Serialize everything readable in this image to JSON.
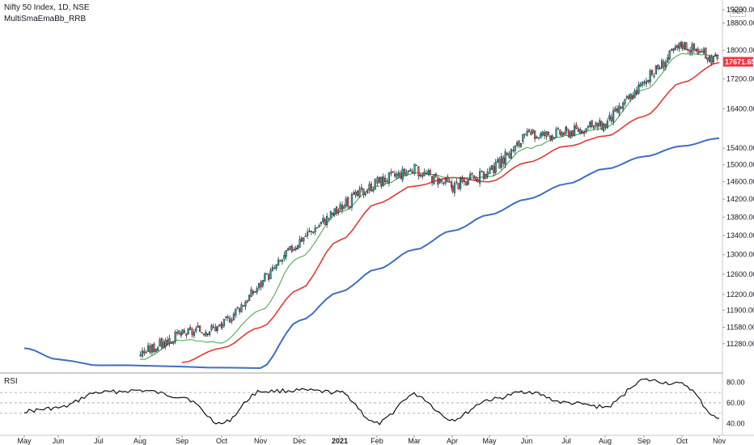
{
  "legend": {
    "symbol": "Nifty 50 Index, 1D, NSE",
    "indicator": "MultiSmaEmaBb_RRB"
  },
  "currency_badge": "INR",
  "last_price_label": "17671.65",
  "rsi_label": "RSI",
  "colors": {
    "up_candle": "#26a69a",
    "down_candle": "#ef5350",
    "sma_short": "#43a047",
    "ema_mid": "#e53935",
    "sma_long": "#3d6fc4",
    "rsi_line": "#000000",
    "last_price_bg": "#f23645"
  },
  "chart_data": [
    {
      "type": "line",
      "title": "",
      "price_axis": {
        "scale": "log",
        "ticks": [
          "19200.00",
          "18800.00",
          "18000.00",
          "17200.00",
          "16400.00",
          "15400.00",
          "15000.00",
          "14600.00",
          "14200.00",
          "13800.00",
          "13400.00",
          "13000.00",
          "12600.00",
          "12200.00",
          "11900.00",
          "11580.00",
          "11280.00"
        ],
        "ylim": [
          10780,
          19300
        ]
      },
      "time_axis": {
        "ticks": [
          "May",
          "Jun",
          "Jul",
          "Aug",
          "Sep",
          "Oct",
          "Nov",
          "Dec",
          "2021",
          "Feb",
          "Mar",
          "Apr",
          "May",
          "Jun",
          "Jul",
          "Aug",
          "Sep",
          "Oct",
          "Nov"
        ]
      },
      "last_price": 17671.65,
      "series": [
        {
          "kind": "candles",
          "x": [
            "Aug",
            "Sep",
            "Oct",
            "Nov",
            "Dec",
            "2021",
            "Feb",
            "Mar",
            "Apr",
            "May",
            "Jun",
            "Jul",
            "Aug",
            "Sep",
            "Oct",
            "Nov"
          ],
          "values": [
            11100,
            11450,
            11600,
            12400,
            13300,
            14000,
            14600,
            14900,
            14500,
            14800,
            15700,
            15800,
            16000,
            17100,
            18200,
            17671.65
          ]
        },
        {
          "kind": "sma_short",
          "x": [
            "Aug",
            "Sep",
            "Oct",
            "Nov",
            "Dec",
            "2021",
            "Feb",
            "Mar",
            "Apr",
            "May",
            "Jun",
            "Jul",
            "Aug",
            "Sep",
            "Oct",
            "Nov"
          ],
          "values": [
            11000,
            11350,
            11300,
            11900,
            12950,
            13900,
            14500,
            14800,
            14700,
            14700,
            15400,
            15700,
            15900,
            16900,
            17900,
            17850
          ]
        },
        {
          "kind": "ema_mid",
          "x": [
            "Sep",
            "Oct",
            "Nov",
            "Dec",
            "2021",
            "Feb",
            "Mar",
            "Apr",
            "May",
            "Jun",
            "Jul",
            "Aug",
            "Sep",
            "Oct",
            "Nov"
          ],
          "values": [
            10950,
            11200,
            11580,
            12300,
            13300,
            14100,
            14500,
            14700,
            14600,
            15050,
            15450,
            15700,
            16200,
            17100,
            17650
          ]
        },
        {
          "kind": "sma_long",
          "x": [
            "May",
            "Jun",
            "Jul",
            "Nov",
            "Dec",
            "2021",
            "Feb",
            "Mar",
            "Apr",
            "May",
            "Jun",
            "Jul",
            "Aug",
            "Sep",
            "Oct",
            "Nov"
          ],
          "values": [
            11200,
            11000,
            10900,
            10850,
            11700,
            12250,
            12700,
            13100,
            13500,
            13850,
            14200,
            14550,
            14900,
            15200,
            15450,
            15650
          ]
        }
      ]
    },
    {
      "type": "line",
      "title": "RSI",
      "ticks": [
        "80.00",
        "60.00",
        "40.00"
      ],
      "ylim": [
        35,
        88
      ],
      "levels": [
        70,
        60,
        50
      ],
      "x": [
        "May",
        "Jun",
        "Jul",
        "Aug",
        "Sep",
        "Oct",
        "Nov",
        "Dec",
        "2021",
        "Feb",
        "Mar",
        "Apr",
        "May",
        "Jun",
        "Jul",
        "Aug",
        "Sep",
        "Oct",
        "Nov"
      ],
      "values": [
        52,
        55,
        70,
        72,
        66,
        40,
        71,
        72,
        70,
        40,
        68,
        44,
        63,
        71,
        60,
        56,
        82,
        78,
        45
      ]
    }
  ]
}
